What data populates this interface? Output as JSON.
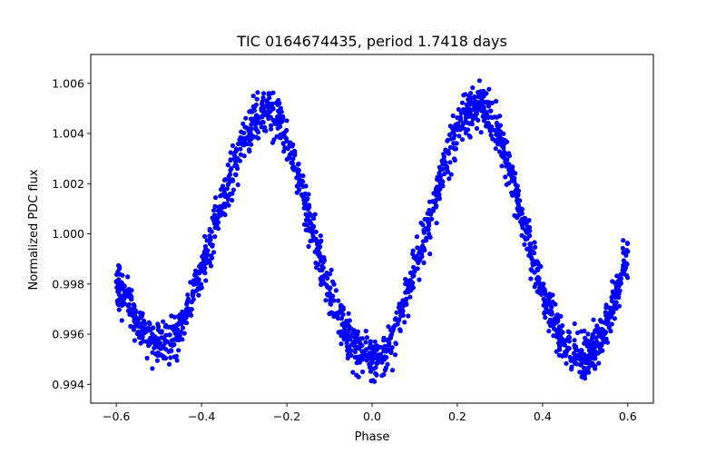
{
  "chart_data": {
    "type": "scatter",
    "title": "TIC 0164674435, period 1.7418 days",
    "xlabel": "Phase",
    "ylabel": "Normalized PDC flux",
    "xlim": [
      -0.66,
      0.66
    ],
    "ylim": [
      0.99325,
      1.00715
    ],
    "xticks": [
      "−0.6",
      "−0.4",
      "−0.2",
      "0.0",
      "0.2",
      "0.4",
      "0.6"
    ],
    "xtick_values": [
      -0.6,
      -0.4,
      -0.2,
      0.0,
      0.2,
      0.4,
      0.6
    ],
    "yticks": [
      "0.994",
      "0.996",
      "0.998",
      "1.000",
      "1.002",
      "1.004",
      "1.006"
    ],
    "ytick_values": [
      0.994,
      0.996,
      0.998,
      1.0,
      1.002,
      1.004,
      1.006
    ],
    "grid": false,
    "legend": "none",
    "marker_color": "#0000ff",
    "series": [
      {
        "marker": "filled-circle",
        "x": [
          -0.6,
          -0.58,
          -0.56,
          -0.54,
          -0.52,
          -0.5,
          -0.48,
          -0.46,
          -0.44,
          -0.42,
          -0.4,
          -0.38,
          -0.36,
          -0.34,
          -0.32,
          -0.3,
          -0.28,
          -0.26,
          -0.24,
          -0.22,
          -0.2,
          -0.18,
          -0.16,
          -0.14,
          -0.12,
          -0.1,
          -0.08,
          -0.06,
          -0.04,
          -0.02,
          0.0,
          0.02,
          0.04,
          0.06,
          0.08,
          0.1,
          0.12,
          0.14,
          0.16,
          0.18,
          0.2,
          0.22,
          0.24,
          0.26,
          0.28,
          0.3,
          0.32,
          0.34,
          0.36,
          0.38,
          0.4,
          0.42,
          0.44,
          0.46,
          0.48,
          0.5,
          0.52,
          0.54,
          0.56,
          0.58,
          0.6
        ],
        "y": [
          0.9981,
          0.9975,
          0.99685,
          0.99625,
          0.99585,
          0.9956,
          0.9957,
          0.9961,
          0.99675,
          0.9976,
          0.99855,
          0.9996,
          1.0007,
          1.0018,
          1.0029,
          1.0038,
          1.00455,
          1.005,
          1.00495,
          1.0045,
          1.0037,
          1.0026,
          1.00135,
          1.0001,
          0.9989,
          0.9978,
          0.99685,
          0.9961,
          0.9955,
          0.9951,
          0.995,
          0.99515,
          0.99565,
          0.9964,
          0.9974,
          0.9985,
          0.9997,
          1.0009,
          1.0021,
          1.0032,
          1.00415,
          1.00475,
          1.00505,
          1.005,
          1.00465,
          1.00385,
          1.00275,
          1.00145,
          1.00015,
          0.9989,
          0.99775,
          0.9968,
          0.996,
          0.99545,
          0.99515,
          0.9951,
          0.9954,
          0.996,
          0.9969,
          0.9981,
          0.9993
        ],
        "scatter_spread": 0.00045
      }
    ]
  }
}
